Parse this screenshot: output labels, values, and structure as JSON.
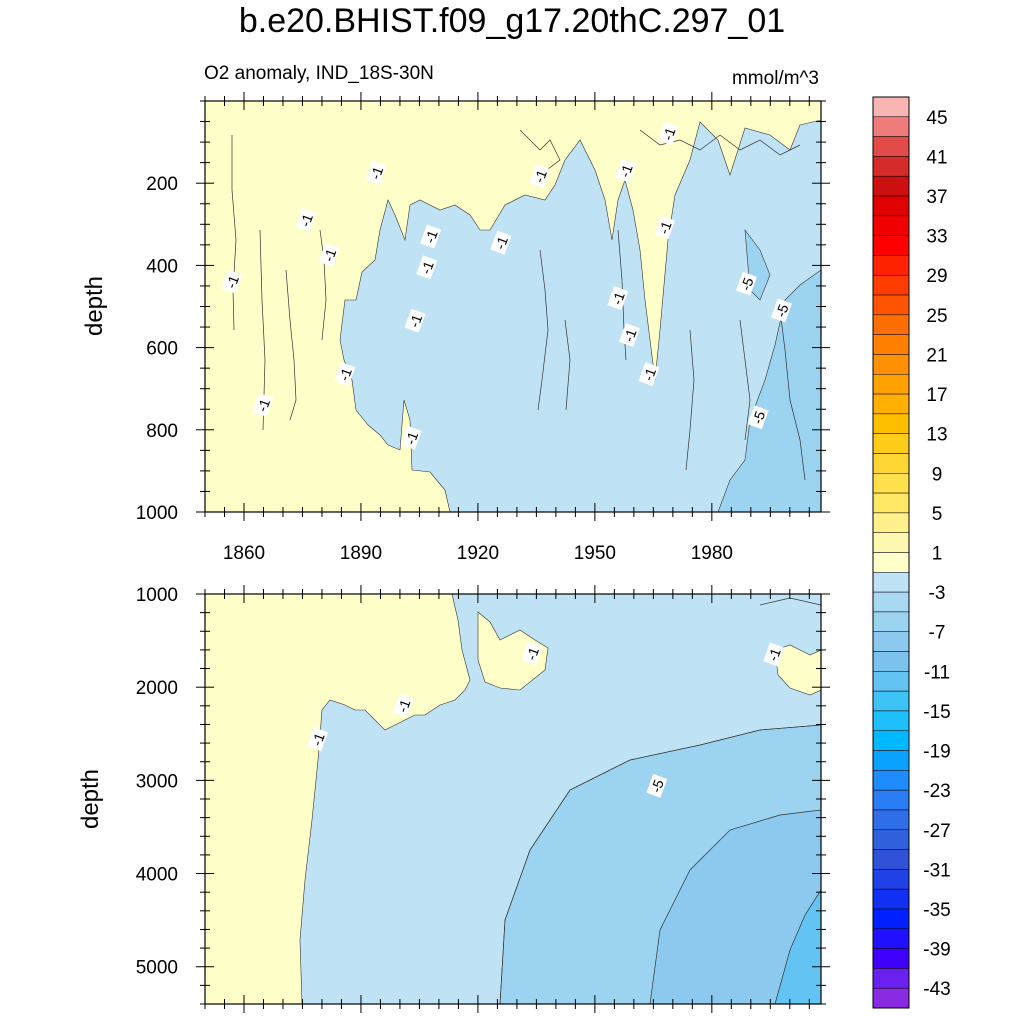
{
  "title": "b.e20.BHIST.f09_g17.20thC.297_01",
  "colors": {
    "zero_band": "#fefec8",
    "neg1": "#bfe3f5",
    "neg2": "#9cd3f0",
    "neg3": "#8dc9ee",
    "neg4": "#63c3f2",
    "contour_line": "#333333"
  },
  "chart_data": [
    {
      "type": "contour",
      "name": "upper-panel",
      "subtitle_left": "O2 anomaly, IND_18S-30N",
      "subtitle_right": "mmol/m^3",
      "xlabel": "",
      "ylabel": "depth",
      "xlim": [
        1850,
        2008
      ],
      "ylim": [
        1000,
        0
      ],
      "x_ticks": [
        1860,
        1890,
        1920,
        1950,
        1980
      ],
      "x_tick_labels": [
        "1860",
        "1890",
        "1920",
        "1950",
        "1980"
      ],
      "y_ticks": [
        200,
        400,
        600,
        800,
        1000
      ],
      "y_tick_labels": [
        "200",
        "400",
        "600",
        "800",
        "1000"
      ],
      "regions": [
        {
          "level": "1",
          "description": "positive anomaly, surface to ~1000 m before ~1913"
        },
        {
          "level": "-3",
          "description": "weak negative anomaly below ~200 m after ~1913"
        },
        {
          "level": "-5",
          "description": "stronger negative anomaly after ~1985 at 400-1000 m"
        }
      ],
      "contour_labels": [
        {
          "text": "-1",
          "x": 1857,
          "y": 440
        },
        {
          "text": "-1",
          "x": 1865,
          "y": 740
        },
        {
          "text": "-1",
          "x": 1876,
          "y": 290
        },
        {
          "text": "-1",
          "x": 1882,
          "y": 375
        },
        {
          "text": "-1",
          "x": 1886,
          "y": 665
        },
        {
          "text": "-1",
          "x": 1894,
          "y": 175
        },
        {
          "text": "-1",
          "x": 1903,
          "y": 820
        },
        {
          "text": "-1",
          "x": 1908,
          "y": 330
        },
        {
          "text": "-1",
          "x": 1907,
          "y": 405
        },
        {
          "text": "-1",
          "x": 1904,
          "y": 535
        },
        {
          "text": "-1",
          "x": 1926,
          "y": 345
        },
        {
          "text": "-1",
          "x": 1936,
          "y": 183
        },
        {
          "text": "-1",
          "x": 1956,
          "y": 480
        },
        {
          "text": "-1",
          "x": 1959,
          "y": 570
        },
        {
          "text": "-1",
          "x": 1958,
          "y": 170
        },
        {
          "text": "-1",
          "x": 1964,
          "y": 665
        },
        {
          "text": "-1",
          "x": 1968,
          "y": 308
        },
        {
          "text": "-1",
          "x": 1969,
          "y": 80
        },
        {
          "text": "-5",
          "x": 1989,
          "y": 445
        },
        {
          "text": "-5",
          "x": 1998,
          "y": 510
        },
        {
          "text": "-5",
          "x": 1992,
          "y": 770
        }
      ]
    },
    {
      "type": "contour",
      "name": "lower-panel",
      "xlabel": "",
      "ylabel": "depth",
      "xlim": [
        1850,
        2008
      ],
      "ylim": [
        1000,
        5400
      ],
      "y_ticks": [
        1000,
        2000,
        3000,
        4000,
        5000
      ],
      "y_tick_labels": [
        "1000",
        "2000",
        "3000",
        "4000",
        "5000"
      ],
      "regions": [
        {
          "level": "1",
          "description": "positive anomaly before ~1874-1912"
        },
        {
          "level": "-3",
          "description": "weak negative anomaly"
        },
        {
          "level": "-5",
          "description": "deeper negative anomaly after ~1930"
        },
        {
          "level": "-7",
          "description": "after ~1962 below 3500 m"
        },
        {
          "level": "-11",
          "description": "after ~1995 below 4500 m"
        }
      ],
      "contour_labels": [
        {
          "text": "-1",
          "x": 1879,
          "y": 2560
        },
        {
          "text": "-1",
          "x": 1901,
          "y": 2200
        },
        {
          "text": "-1",
          "x": 1934,
          "y": 1640
        },
        {
          "text": "-1",
          "x": 1996,
          "y": 1650
        },
        {
          "text": "-5",
          "x": 1966,
          "y": 3060
        }
      ]
    },
    {
      "type": "colorbar",
      "name": "legend",
      "levels": [
        -45,
        -43,
        -41,
        -39,
        -37,
        -35,
        -33,
        -31,
        -29,
        -27,
        -25,
        -23,
        -21,
        -19,
        -17,
        -15,
        -13,
        -11,
        -9,
        -7,
        -5,
        -3,
        -1,
        1,
        3,
        5,
        7,
        9,
        11,
        13,
        15,
        17,
        19,
        21,
        23,
        25,
        27,
        29,
        31,
        33,
        35,
        37,
        39,
        41,
        43,
        45
      ],
      "tick_labels": [
        "45",
        "41",
        "37",
        "33",
        "29",
        "25",
        "21",
        "17",
        "13",
        "9",
        "5",
        "1",
        "-3",
        "-7",
        "-11",
        "-15",
        "-19",
        "-23",
        "-27",
        "-31",
        "-35",
        "-39",
        "-43"
      ],
      "colors_top_to_bottom": [
        "#fbb4b4",
        "#ef7b7b",
        "#e34a4a",
        "#d62b2b",
        "#cc1010",
        "#e00000",
        "#f00000",
        "#ff0000",
        "#ff2200",
        "#ff3c00",
        "#ff5500",
        "#ff6e00",
        "#ff7f00",
        "#ff9100",
        "#ffa200",
        "#ffb000",
        "#ffbf00",
        "#ffcc1a",
        "#ffd633",
        "#ffe04d",
        "#ffe866",
        "#fff08c",
        "#fef7b0",
        "#fefec8",
        "#bfe3f5",
        "#a9d9f2",
        "#9cd3f0",
        "#8dc9ee",
        "#7bc3ee",
        "#63c3f2",
        "#3ec3f7",
        "#1ec0fb",
        "#00b8ff",
        "#0aa2ff",
        "#1e8cff",
        "#2a7df4",
        "#2e6ee8",
        "#3060dc",
        "#3052d8",
        "#2040e8",
        "#1030f4",
        "#0020ff",
        "#2010ff",
        "#4000ff",
        "#6a20ee",
        "#8a2ae2"
      ]
    }
  ]
}
